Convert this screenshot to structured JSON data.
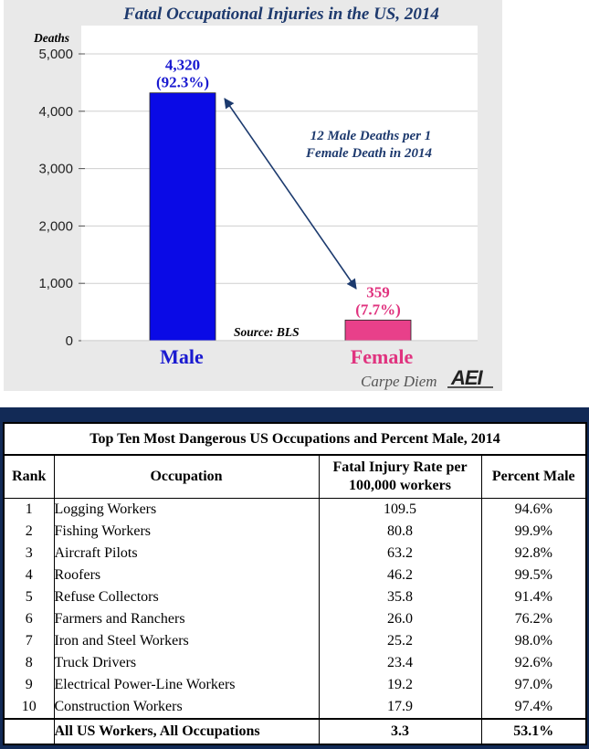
{
  "chart_data": {
    "type": "bar",
    "title": "Fatal Occupational Injuries in the US, 2014",
    "ylabel": "Deaths",
    "ylim": [
      0,
      5000
    ],
    "yticks": [
      "0",
      "1,000",
      "2,000",
      "3,000",
      "4,000",
      "5,000"
    ],
    "ytick_values": [
      0,
      1000,
      2000,
      3000,
      4000,
      5000
    ],
    "grid": true,
    "categories": [
      "Male",
      "Female"
    ],
    "values": [
      4320,
      359
    ],
    "value_labels": [
      "4,320",
      "359"
    ],
    "percent_labels": [
      "(92.3%)",
      "(7.7%)"
    ],
    "colors": [
      "#0a0ae6",
      "#e8408a"
    ],
    "label_colors": [
      "#1a1ad0",
      "#e0337f"
    ],
    "annotation_line1": "12 Male Deaths per 1",
    "annotation_line2": "Female Death in 2014",
    "source": "Source: BLS",
    "branding_text": "Carpe Diem",
    "branding_logo": "AEI"
  },
  "table": {
    "title": "Top Ten Most Dangerous US Occupations and Percent Male, 2014",
    "headers": {
      "rank": "Rank",
      "occupation": "Occupation",
      "rate_line1": "Fatal Injury Rate per",
      "rate_line2": "100,000 workers",
      "percent": "Percent Male"
    },
    "rows": [
      {
        "rank": "1",
        "occupation": "Logging Workers",
        "rate": "109.5",
        "percent": "94.6%"
      },
      {
        "rank": "2",
        "occupation": "Fishing Workers",
        "rate": "80.8",
        "percent": "99.9%"
      },
      {
        "rank": "3",
        "occupation": "Aircraft Pilots",
        "rate": "63.2",
        "percent": "92.8%"
      },
      {
        "rank": "4",
        "occupation": "Roofers",
        "rate": "46.2",
        "percent": "99.5%"
      },
      {
        "rank": "5",
        "occupation": "Refuse Collectors",
        "rate": "35.8",
        "percent": "91.4%"
      },
      {
        "rank": "6",
        "occupation": "Farmers and Ranchers",
        "rate": "26.0",
        "percent": "76.2%"
      },
      {
        "rank": "7",
        "occupation": "Iron and Steel Workers",
        "rate": "25.2",
        "percent": "98.0%"
      },
      {
        "rank": "8",
        "occupation": "Truck Drivers",
        "rate": "23.4",
        "percent": "92.6%"
      },
      {
        "rank": "9",
        "occupation": "Electrical Power-Line Workers",
        "rate": "19.2",
        "percent": "97.0%"
      },
      {
        "rank": "10",
        "occupation": "Construction Workers",
        "rate": "17.9",
        "percent": "97.4%"
      }
    ],
    "total": {
      "occupation": "All US Workers, All Occupations",
      "rate": "3.3",
      "percent": "53.1%"
    }
  }
}
